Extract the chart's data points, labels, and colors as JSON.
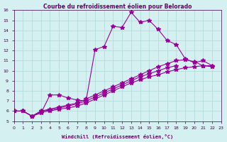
{
  "title": "Courbe du refroidissement éolien pour Belorado",
  "xlabel": "Windchill (Refroidissement éolien,°C)",
  "ylabel": "",
  "background_color": "#d4f0f0",
  "line_color": "#990099",
  "grid_color": "#b0d8d8",
  "xlim": [
    0,
    23
  ],
  "ylim": [
    5,
    16
  ],
  "xticks": [
    0,
    1,
    2,
    3,
    4,
    5,
    6,
    7,
    8,
    9,
    10,
    11,
    12,
    13,
    14,
    15,
    16,
    17,
    18,
    19,
    20,
    21,
    22,
    23
  ],
  "yticks": [
    5,
    6,
    7,
    8,
    9,
    10,
    11,
    12,
    13,
    14,
    15,
    16
  ],
  "series": [
    [
      6.0,
      6.0,
      5.5,
      5.8,
      7.6,
      7.6,
      7.3,
      7.1,
      7.0,
      12.1,
      12.4,
      14.4,
      14.3,
      15.8,
      14.8,
      15.0,
      14.1,
      13.0,
      12.6,
      11.2,
      10.8,
      11.0,
      10.5,
      null
    ],
    [
      6.0,
      6.0,
      5.5,
      6.0,
      6.2,
      6.4,
      6.6,
      6.8,
      7.2,
      7.6,
      8.0,
      8.4,
      8.8,
      9.2,
      9.6,
      10.0,
      10.4,
      10.7,
      11.0,
      11.1,
      10.9,
      10.5,
      10.4,
      null
    ],
    [
      6.0,
      6.0,
      5.5,
      6.0,
      6.1,
      6.3,
      6.5,
      6.7,
      7.0,
      7.4,
      7.8,
      8.2,
      8.6,
      9.0,
      9.4,
      9.7,
      10.0,
      10.3,
      10.5,
      null,
      null,
      null,
      null,
      null
    ],
    [
      6.0,
      6.0,
      5.5,
      5.9,
      6.0,
      6.2,
      6.3,
      6.5,
      6.8,
      7.2,
      7.6,
      8.0,
      8.4,
      8.8,
      9.1,
      9.4,
      9.6,
      9.9,
      10.1,
      10.3,
      10.4,
      10.5,
      10.5,
      null
    ]
  ]
}
